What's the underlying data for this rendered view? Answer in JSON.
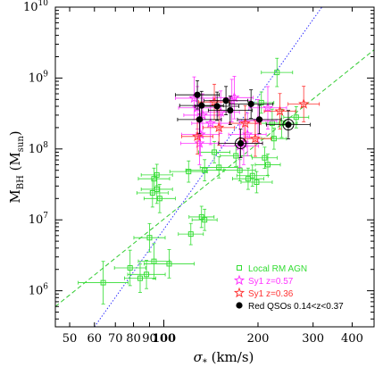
{
  "chart_data": {
    "type": "scatter",
    "x_scale": "log",
    "y_scale": "log",
    "xlabel": "σ* (km/s)",
    "ylabel": "M_BH (M_sun)",
    "xlim": [
      45,
      470
    ],
    "ylim": [
      310000,
      10000000000
    ],
    "x_ticks": [
      50,
      60,
      70,
      80,
      90,
      100,
      200,
      300,
      400
    ],
    "x_tick_labels": [
      "50",
      "60",
      "70",
      "80",
      "90",
      "100",
      "200",
      "300",
      "400"
    ],
    "y_ticks": [
      1000000,
      10000000,
      100000000,
      1000000000,
      10000000000
    ],
    "y_tick_labels": [
      {
        "base": "10",
        "exp": "6"
      },
      {
        "base": "10",
        "exp": "7"
      },
      {
        "base": "10",
        "exp": "8"
      },
      {
        "base": "10",
        "exp": "9"
      },
      {
        "base": "10",
        "exp": "10"
      }
    ],
    "legend_position": "bottom-right",
    "series": [
      {
        "name": "Local RM AGN",
        "marker": "square",
        "color": "#33dd33",
        "points": [
          [
            64,
            1300000,
            0.08,
            0.3
          ],
          [
            78,
            2100000,
            0.05,
            0.25
          ],
          [
            88,
            1700000,
            0.06,
            0.2
          ],
          [
            84,
            1500000,
            0.05,
            0.2
          ],
          [
            93,
            2600000,
            0.05,
            0.25
          ],
          [
            104,
            2400000,
            0.08,
            0.2
          ],
          [
            90,
            5600000,
            0.05,
            0.2
          ],
          [
            132,
            11000000,
            0.04,
            0.15
          ],
          [
            135,
            10000000,
            0.04,
            0.15
          ],
          [
            122,
            6300000,
            0.04,
            0.15
          ],
          [
            92,
            24000000,
            0.05,
            0.2
          ],
          [
            95,
            27000000,
            0.05,
            0.2
          ],
          [
            97,
            20000000,
            0.05,
            0.2
          ],
          [
            93,
            38000000,
            0.05,
            0.15
          ],
          [
            95,
            43000000,
            0.05,
            0.15
          ],
          [
            120,
            48000000,
            0.06,
            0.15
          ],
          [
            135,
            50000000,
            0.06,
            0.15
          ],
          [
            150,
            55000000,
            0.06,
            0.15
          ],
          [
            186,
            38000000,
            0.05,
            0.15
          ],
          [
            198,
            34000000,
            0.05,
            0.15
          ],
          [
            192,
            42000000,
            0.05,
            0.15
          ],
          [
            175,
            50000000,
            0.05,
            0.15
          ],
          [
            210,
            75000000,
            0.04,
            0.15
          ],
          [
            215,
            60000000,
            0.04,
            0.15
          ],
          [
            222,
            230000000,
            0.04,
            0.2
          ],
          [
            225,
            140000000,
            0.04,
            0.15
          ],
          [
            238,
            230000000,
            0.05,
            0.2
          ],
          [
            265,
            280000000,
            0.04,
            0.15
          ],
          [
            230,
            1200000000,
            0.05,
            0.2
          ],
          [
            205,
            450000000,
            0.04,
            0.15
          ],
          [
            170,
            80000000,
            0.05,
            0.15
          ],
          [
            145,
            90000000,
            0.05,
            0.15
          ]
        ]
      },
      {
        "name": "Sy1 z=0.57",
        "marker": "star",
        "color": "#ff33ff",
        "points": [
          [
            125,
            520000000,
            0.06,
            0.3
          ],
          [
            128,
            380000000,
            0.06,
            0.3
          ],
          [
            133,
            300000000,
            0.06,
            0.3
          ],
          [
            131,
            160000000,
            0.06,
            0.3
          ],
          [
            141,
            230000000,
            0.06,
            0.3
          ],
          [
            152,
            330000000,
            0.06,
            0.3
          ],
          [
            168,
            530000000,
            0.06,
            0.3
          ],
          [
            165,
            480000000,
            0.06,
            0.3
          ],
          [
            175,
            110000000,
            0.06,
            0.3
          ],
          [
            180,
            120000000,
            0.06,
            0.3
          ],
          [
            200,
            250000000,
            0.06,
            0.3
          ],
          [
            215,
            380000000,
            0.06,
            0.3
          ],
          [
            185,
            160000000,
            0.06,
            0.3
          ],
          [
            130,
            120000000,
            0.06,
            0.3
          ]
        ]
      },
      {
        "name": "Sy1 z=0.36",
        "marker": "star",
        "color": "#ff3333",
        "points": [
          [
            128,
            150000000,
            0.05,
            0.25
          ],
          [
            145,
            460000000,
            0.05,
            0.25
          ],
          [
            150,
            200000000,
            0.05,
            0.25
          ],
          [
            182,
            230000000,
            0.05,
            0.25
          ],
          [
            235,
            340000000,
            0.05,
            0.25
          ],
          [
            280,
            430000000,
            0.05,
            0.25
          ],
          [
            196,
            140000000,
            0.05,
            0.25
          ]
        ]
      },
      {
        "name": "Red QSOs 0.14<z<0.37",
        "marker": "circle",
        "color": "#000000",
        "points": [
          [
            128,
            580000000,
            0.07,
            0.2
          ],
          [
            132,
            410000000,
            0.07,
            0.2
          ],
          [
            130,
            260000000,
            0.07,
            0.2
          ],
          [
            148,
            400000000,
            0.07,
            0.2
          ],
          [
            158,
            480000000,
            0.07,
            0.2
          ],
          [
            163,
            350000000,
            0.07,
            0.2
          ],
          [
            190,
            430000000,
            0.07,
            0.2
          ],
          [
            202,
            260000000,
            0.07,
            0.2
          ],
          [
            176,
            120000000,
            0.07,
            0.2
          ],
          [
            250,
            220000000,
            0.07,
            0.2
          ]
        ]
      }
    ],
    "fits": [
      {
        "style": "dashed",
        "color": "#33cc33",
        "points": [
          [
            45,
            600000
          ],
          [
            470,
            2500000000
          ]
        ]
      },
      {
        "style": "dotted",
        "color": "#3333ff",
        "points": [
          [
            60,
            310000
          ],
          [
            320,
            10000000000
          ]
        ]
      }
    ],
    "highlighted_points": [
      [
        176,
        120000000
      ],
      [
        250,
        220000000
      ]
    ]
  }
}
